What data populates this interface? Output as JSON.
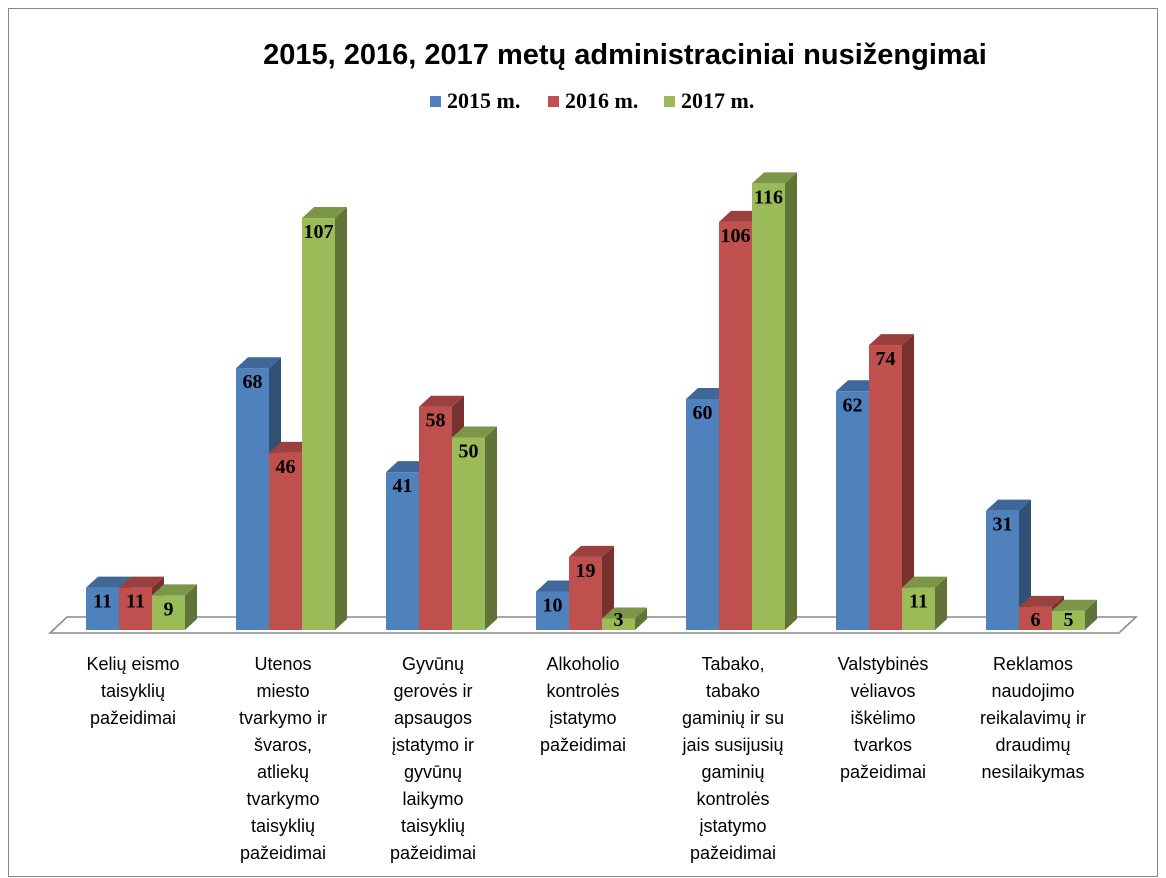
{
  "chart_data": {
    "type": "bar",
    "three_d": true,
    "title": "2015, 2016, 2017 metų administraciniai nusižengimai",
    "legend_position": "top",
    "grid": false,
    "data_labels": true,
    "ylim": [
      0,
      140
    ],
    "categories": [
      "Kelių eismo\ntaisyklių\npažeidimai",
      "Utenos\nmiesto\ntvarkymo ir\nšvaros,\natliekų\ntvarkymo\ntaisyklių\npažeidimai",
      "Gyvūnų\ngerovės ir\napsaugos\nįstatymo ir\ngyvūnų\nlaikymo\ntaisyklių\npažeidimai",
      "Alkoholio\nkontrolės\nįstatymo\npažeidimai",
      "Tabako,\ntabako\ngaminių ir su\njais susijusių\ngaminių\nkontrolės\nįstatymo\npažeidimai",
      "Valstybinės\nvėliavos\niškėlimo\ntvarkos\npažeidimai",
      "Reklamos\nnaudojimo\nreikalavimų ir\ndraudimų\nnesilaikymas"
    ],
    "series": [
      {
        "name": "2015 m.",
        "color": "#4F81BD",
        "values": [
          11,
          68,
          41,
          10,
          60,
          62,
          31
        ]
      },
      {
        "name": "2016 m.",
        "color": "#C0504D",
        "values": [
          11,
          46,
          58,
          19,
          106,
          74,
          6
        ]
      },
      {
        "name": "2017 m.",
        "color": "#9BBB59",
        "values": [
          9,
          107,
          50,
          3,
          116,
          11,
          5
        ]
      }
    ]
  }
}
